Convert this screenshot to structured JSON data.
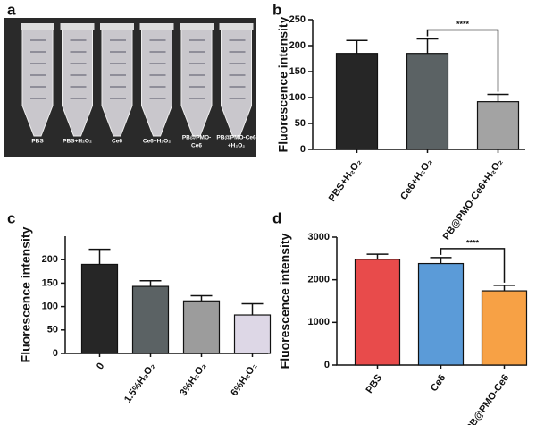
{
  "panel_labels": [
    "a",
    "b",
    "c",
    "d"
  ],
  "photo": {
    "labels": [
      [
        "PBS"
      ],
      [
        "PBS+H₂O₂"
      ],
      [
        "Ce6"
      ],
      [
        "Ce6+H₂O₂"
      ],
      [
        "PB@PMO-",
        "Ce6"
      ],
      [
        "PB@PMO-Ce6",
        "+H₂O₂"
      ]
    ]
  },
  "chart_data": [
    {
      "type": "bar",
      "ylabel": "Fluorescence intensity",
      "categories": [
        "PBS+H₂O₂",
        "Ce6+H₂O₂",
        "PB@PMO-Ce6+H₂O₂"
      ],
      "values": [
        185,
        185,
        92
      ],
      "errors": [
        25,
        28,
        14
      ],
      "colors": [
        "#262626",
        "#5b6264",
        "#a3a3a3"
      ],
      "ylim": [
        0,
        250
      ],
      "yticks": [
        0,
        50,
        100,
        150,
        200,
        250
      ],
      "annotation": "****"
    },
    {
      "type": "bar",
      "ylabel": "Fluorescence intensity",
      "categories": [
        "0",
        "1.5%H₂O₂",
        "3%H₂O₂",
        "6%H₂O₂"
      ],
      "values": [
        190,
        143,
        112,
        82
      ],
      "errors": [
        32,
        12,
        11,
        24
      ],
      "colors": [
        "#262626",
        "#5b6264",
        "#9c9c9c",
        "#ddd7e6"
      ],
      "ylim": [
        0,
        250
      ],
      "yticks": [
        0,
        50,
        100,
        150,
        200
      ]
    },
    {
      "type": "bar",
      "ylabel": "Fluorescence intensity",
      "categories": [
        "PBS",
        "Ce6",
        "PB@PMO-Ce6"
      ],
      "values": [
        2480,
        2380,
        1740
      ],
      "errors": [
        120,
        140,
        130
      ],
      "colors": [
        "#e84b4b",
        "#5b9bd8",
        "#f7a145"
      ],
      "ylim": [
        0,
        3000
      ],
      "yticks": [
        0,
        1000,
        2000,
        3000
      ],
      "annotation": "****"
    }
  ]
}
